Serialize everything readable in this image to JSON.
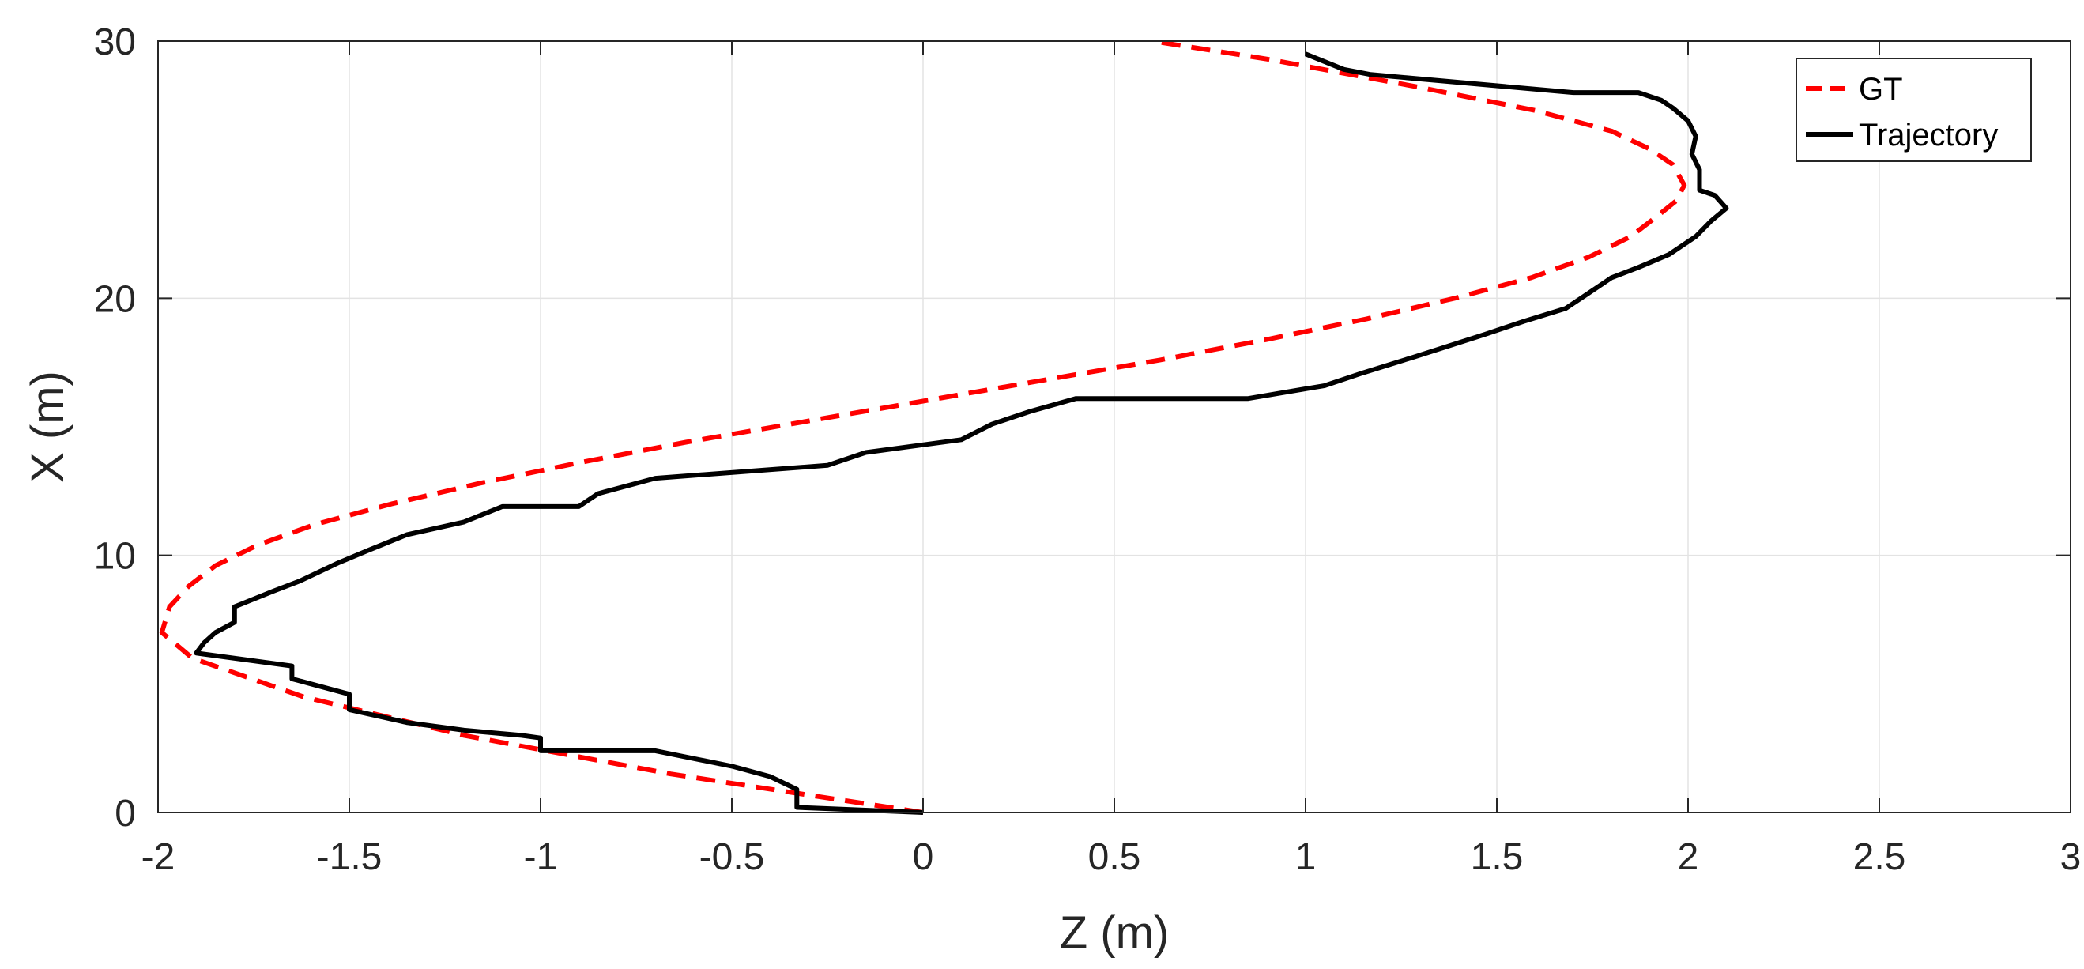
{
  "chart_data": {
    "type": "line",
    "xlabel": "Z (m)",
    "ylabel": "X (m)",
    "xlim": [
      -2,
      3
    ],
    "ylim": [
      0,
      30
    ],
    "xticks": [
      -2,
      -1.5,
      -1,
      -0.5,
      0,
      0.5,
      1,
      1.5,
      2,
      2.5,
      3
    ],
    "xtick_labels": [
      "-2",
      "-1.5",
      "-1",
      "-0.5",
      "0",
      "0.5",
      "1",
      "1.5",
      "2",
      "2.5",
      "3"
    ],
    "yticks": [
      0,
      10,
      20,
      30
    ],
    "ytick_labels": [
      "0",
      "10",
      "20",
      "30"
    ],
    "grid": true,
    "legend_position": "top-right",
    "series": [
      {
        "name": "GT",
        "color": "#ff0000",
        "style": "dashed",
        "x": [
          0,
          -0.66,
          -1.2,
          -1.62,
          -1.91,
          -1.99,
          -1.97,
          -1.92,
          -1.85,
          -1.74,
          -1.59,
          -1.39,
          -1.16,
          -0.9,
          -0.62,
          -0.31,
          0,
          0.31,
          0.62,
          0.9,
          1.16,
          1.39,
          1.59,
          1.74,
          1.85,
          1.92,
          1.97,
          1.99,
          1.96,
          1.9,
          1.8,
          1.6,
          1.3,
          0.9,
          0.6
        ],
        "y": [
          0,
          1.5,
          3,
          4.5,
          6,
          7,
          8,
          8.8,
          9.6,
          10.4,
          11.2,
          12,
          12.8,
          13.6,
          14.4,
          15.2,
          16,
          16.8,
          17.6,
          18.4,
          19.2,
          20,
          20.8,
          21.6,
          22.4,
          23.2,
          23.8,
          24.4,
          25.2,
          25.8,
          26.5,
          27.3,
          28.2,
          29.3,
          30
        ]
      },
      {
        "name": "Trajectory",
        "color": "#000000",
        "style": "solid",
        "x": [
          0,
          -0.33,
          -0.33,
          -0.4,
          -0.5,
          -0.6,
          -0.7,
          -1,
          -1,
          -1.05,
          -1.2,
          -1.35,
          -1.5,
          -1.5,
          -1.6,
          -1.65,
          -1.65,
          -1.9,
          -1.88,
          -1.85,
          -1.8,
          -1.8,
          -1.7,
          -1.63,
          -1.53,
          -1.45,
          -1.35,
          -1.2,
          -1.1,
          -0.9,
          -0.85,
          -0.7,
          -0.25,
          -0.15,
          0.1,
          0.18,
          0.28,
          0.4,
          0.85,
          1.05,
          1.15,
          1.28,
          1.47,
          1.57,
          1.68,
          1.73,
          1.8,
          1.87,
          1.95,
          2.02,
          2.06,
          2.1,
          2.07,
          2.03,
          2.03,
          2.01,
          2.02,
          2,
          1.96,
          1.93,
          1.87,
          1.7,
          1.17,
          1.1,
          1
        ],
        "y": [
          0,
          0.2,
          0.9,
          1.4,
          1.8,
          2.1,
          2.4,
          2.4,
          2.9,
          3,
          3.2,
          3.5,
          4,
          4.6,
          5,
          5.2,
          5.7,
          6.2,
          6.6,
          7,
          7.4,
          8,
          8.6,
          9,
          9.7,
          10.2,
          10.8,
          11.3,
          11.9,
          11.9,
          12.4,
          13,
          13.5,
          14,
          14.5,
          15.1,
          15.6,
          16.1,
          16.1,
          16.6,
          17.1,
          17.7,
          18.6,
          19.1,
          19.6,
          20.1,
          20.8,
          21.2,
          21.7,
          22.4,
          23,
          23.5,
          24,
          24.2,
          25,
          25.6,
          26.3,
          26.9,
          27.4,
          27.7,
          28,
          28,
          28.7,
          28.9,
          29.5
        ]
      }
    ]
  }
}
